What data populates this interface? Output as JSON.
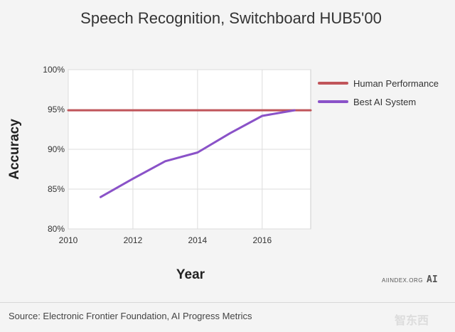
{
  "chart_data": {
    "type": "line",
    "title": "Speech Recognition, Switchboard HUB5'00",
    "xlabel": "Year",
    "ylabel": "Accuracy",
    "xlim": [
      2010,
      2017.5
    ],
    "ylim": [
      80,
      100
    ],
    "x_ticks": [
      2010,
      2012,
      2014,
      2016
    ],
    "x_tick_labels": [
      "2010",
      "2012",
      "2014",
      "2016"
    ],
    "y_ticks": [
      80,
      85,
      90,
      95,
      100
    ],
    "y_tick_labels": [
      "80%",
      "85%",
      "90%",
      "95%",
      "100%"
    ],
    "grid": true,
    "legend_position": "right",
    "series": [
      {
        "name": "Human Performance",
        "color": "#c0555a",
        "x": [
          2010,
          2017.5
        ],
        "y": [
          94.9,
          94.9
        ]
      },
      {
        "name": "Best AI System",
        "color": "#8a52c8",
        "x": [
          2011,
          2012,
          2013,
          2014,
          2015,
          2016,
          2017
        ],
        "y": [
          84.0,
          86.3,
          88.5,
          89.6,
          92.0,
          94.2,
          94.9
        ]
      }
    ]
  },
  "footer": {
    "source": "Source: Electronic Frontier Foundation, AI Progress Metrics",
    "credit": "AIINDEX.ORG",
    "logo": "AI",
    "watermark": "智东西"
  }
}
